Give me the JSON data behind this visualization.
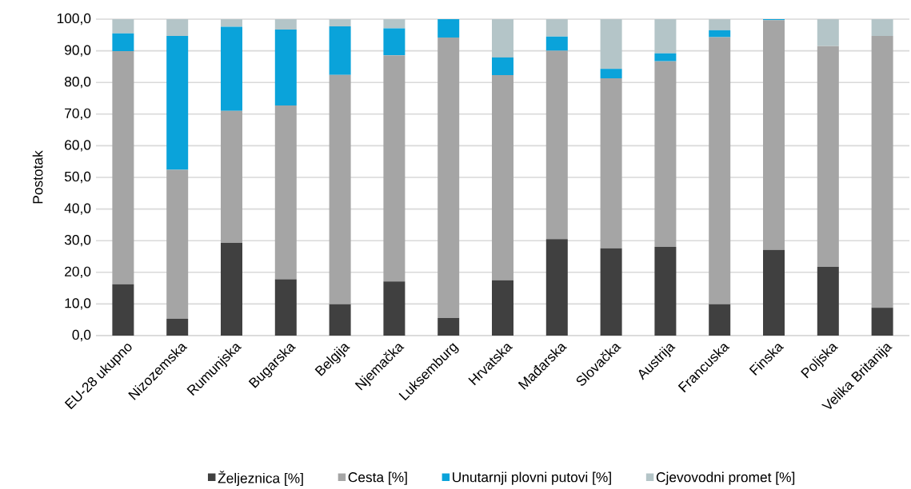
{
  "chart_data": {
    "type": "bar",
    "stacked": true,
    "ylabel": "Postotak",
    "categories": [
      "EU-28 ukupno",
      "Nizozemska",
      "Rumunjska",
      "Bugarska",
      "Belgija",
      "Njemačka",
      "Luksemburg",
      "Hrvatska",
      "Mađarska",
      "Slovačka",
      "Austrija",
      "Francuska",
      "Finska",
      "Poljska",
      "Velika Britanija"
    ],
    "series": [
      {
        "name": "Željeznica [%]",
        "color": "#404040",
        "values": [
          16.2,
          5.3,
          29.3,
          17.8,
          9.9,
          17.1,
          5.6,
          17.5,
          30.5,
          27.6,
          28.0,
          9.9,
          27.1,
          21.7,
          8.8
        ]
      },
      {
        "name": "Cesta [%]",
        "color": "#a5a5a5",
        "values": [
          73.7,
          47.1,
          41.7,
          54.9,
          72.5,
          71.5,
          88.6,
          64.8,
          59.5,
          53.7,
          58.7,
          84.4,
          72.6,
          69.8,
          85.9
        ]
      },
      {
        "name": "Unutarnji plovni putovi [%]",
        "color": "#0aa3da",
        "values": [
          5.6,
          42.3,
          26.6,
          24.0,
          15.3,
          8.5,
          5.8,
          5.6,
          4.5,
          3.0,
          2.5,
          2.2,
          0.3,
          0,
          0
        ]
      },
      {
        "name": "Cjevovodni promet [%]",
        "color": "#b4c5c8",
        "values": [
          4.5,
          5.3,
          2.4,
          3.3,
          2.3,
          2.9,
          0,
          12.1,
          5.5,
          15.7,
          10.8,
          3.5,
          0,
          8.5,
          5.3
        ]
      }
    ],
    "ylim": [
      0,
      100
    ],
    "yticks": [
      {
        "value": 0,
        "label": "0,0"
      },
      {
        "value": 10,
        "label": "10,0"
      },
      {
        "value": 20,
        "label": "20,0"
      },
      {
        "value": 30,
        "label": "30,0"
      },
      {
        "value": 40,
        "label": "40,0"
      },
      {
        "value": 50,
        "label": "50,0"
      },
      {
        "value": 60,
        "label": "60,0"
      },
      {
        "value": 70,
        "label": "70,0"
      },
      {
        "value": 80,
        "label": "80,0"
      },
      {
        "value": 90,
        "label": "90,0"
      },
      {
        "value": 100,
        "label": "100,0"
      }
    ],
    "grid": "y",
    "legend": "bottom"
  }
}
